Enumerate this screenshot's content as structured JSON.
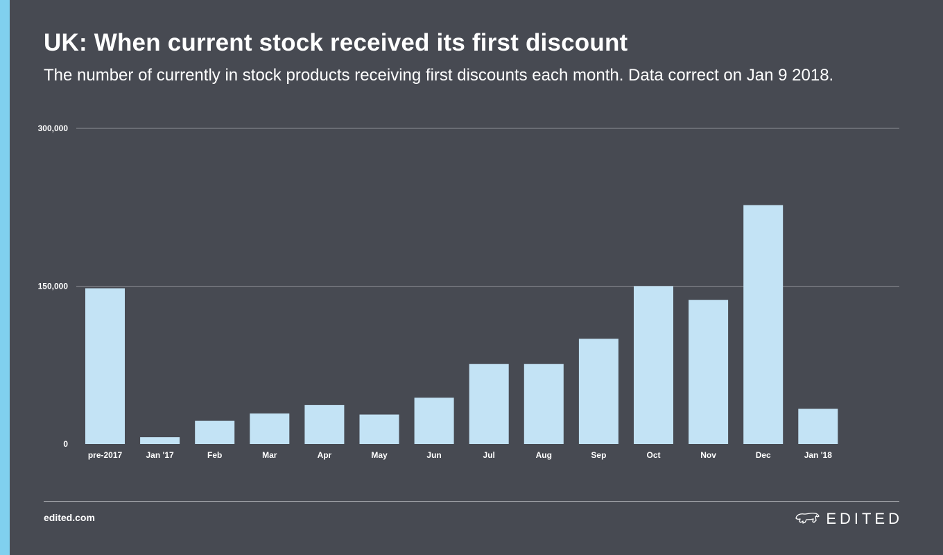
{
  "title": "UK: When current stock received its first discount",
  "subtitle": "The number of currently in stock products receiving first discounts each month. Data correct on Jan 9 2018.",
  "footer": {
    "url": "edited.com",
    "brand": "EDITED"
  },
  "colors": {
    "background": "#474a52",
    "accent": "#80d0ee",
    "bar": "#c3e3f5",
    "grid": "#8e9097"
  },
  "chart_data": {
    "type": "bar",
    "categories": [
      "pre-2017",
      "Jan '17",
      "Feb",
      "Mar",
      "Apr",
      "May",
      "Jun",
      "Jul",
      "Aug",
      "Sep",
      "Oct",
      "Nov",
      "Dec",
      "Jan '18"
    ],
    "values": [
      148000,
      6500,
      22000,
      29000,
      37000,
      28000,
      44000,
      76000,
      76000,
      100000,
      150000,
      137000,
      227000,
      33500
    ],
    "y_ticks": [
      0,
      150000,
      300000
    ],
    "y_tick_labels": [
      "0",
      "150,000",
      "300,000"
    ],
    "ylim": [
      0,
      300000
    ],
    "xlabel": "",
    "ylabel": "",
    "grid": true,
    "legend": "none"
  }
}
